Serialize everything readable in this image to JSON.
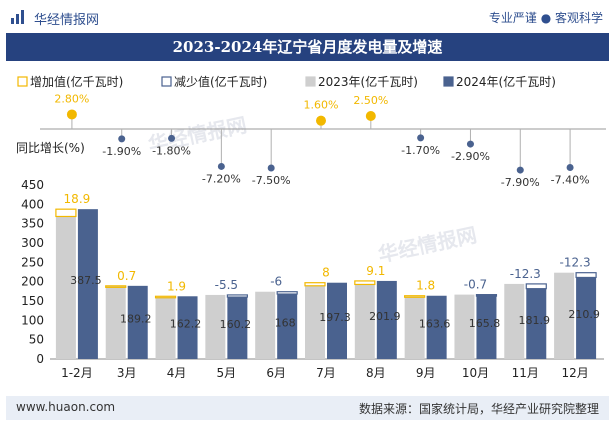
{
  "header": {
    "brand": "华经情报网",
    "slogan": "专业严谨 ● 客观科学"
  },
  "colors": {
    "title_bg": "#26427f",
    "bar_2023": "#cfcfcf",
    "bar_2024": "#4a628f",
    "increase": "#f2b800",
    "decrease": "#4a628f",
    "footer_bg": "#e9eef6"
  },
  "chart_data": {
    "type": "bar",
    "title": "2023-2024年辽宁省月度发电量及增速",
    "categories": [
      "1-2月",
      "3月",
      "4月",
      "5月",
      "6月",
      "7月",
      "8月",
      "9月",
      "10月",
      "11月",
      "12月"
    ],
    "series": [
      {
        "name": "2023年(亿千瓦时)",
        "values": [
          368.6,
          188.5,
          160.3,
          165.7,
          174,
          189.3,
          192.8,
          161.8,
          166.5,
          194.2,
          223.2
        ]
      },
      {
        "name": "2024年(亿千瓦时)",
        "values": [
          387.5,
          189.2,
          162.2,
          160.2,
          168,
          197.3,
          201.9,
          163.6,
          165.8,
          181.9,
          210.9
        ]
      }
    ],
    "change": [
      18.9,
      0.7,
      1.9,
      -5.5,
      -6,
      8,
      9.1,
      1.8,
      -0.7,
      -12.3,
      -12.3
    ],
    "change_labels": [
      "18.9",
      "0.7",
      "1.9",
      "-5.5",
      "-6",
      "8",
      "9.1",
      "1.8",
      "-0.7",
      "-12.3",
      "-12.3"
    ],
    "value_labels": [
      "387.5",
      "189.2",
      "162.2",
      "160.2",
      "168",
      "197.3",
      "201.9",
      "163.6",
      "165.8",
      "181.9",
      "210.9"
    ],
    "growth": [
      2.8,
      -1.9,
      -1.8,
      -7.2,
      -7.5,
      1.6,
      2.5,
      -1.7,
      -2.9,
      -7.9,
      -7.4
    ],
    "growth_labels": [
      "2.80%",
      "-1.90%",
      "-1.80%",
      "-7.20%",
      "-7.50%",
      "1.60%",
      "2.50%",
      "-1.70%",
      "-2.90%",
      "-7.90%",
      "-7.40%"
    ],
    "legend": [
      "增加值(亿千瓦时)",
      "减少值(亿千瓦时)",
      "2023年(亿千瓦时)",
      "2024年(亿千瓦时)"
    ],
    "growth_axis_label": "同比增长(%)",
    "ylim": [
      0,
      450
    ],
    "yticks": [
      "0",
      "50",
      "100",
      "150",
      "200",
      "250",
      "300",
      "350",
      "400",
      "450"
    ]
  },
  "footer": {
    "website": "www.huaon.com",
    "source": "数据来源：国家统计局，华经产业研究院整理"
  }
}
